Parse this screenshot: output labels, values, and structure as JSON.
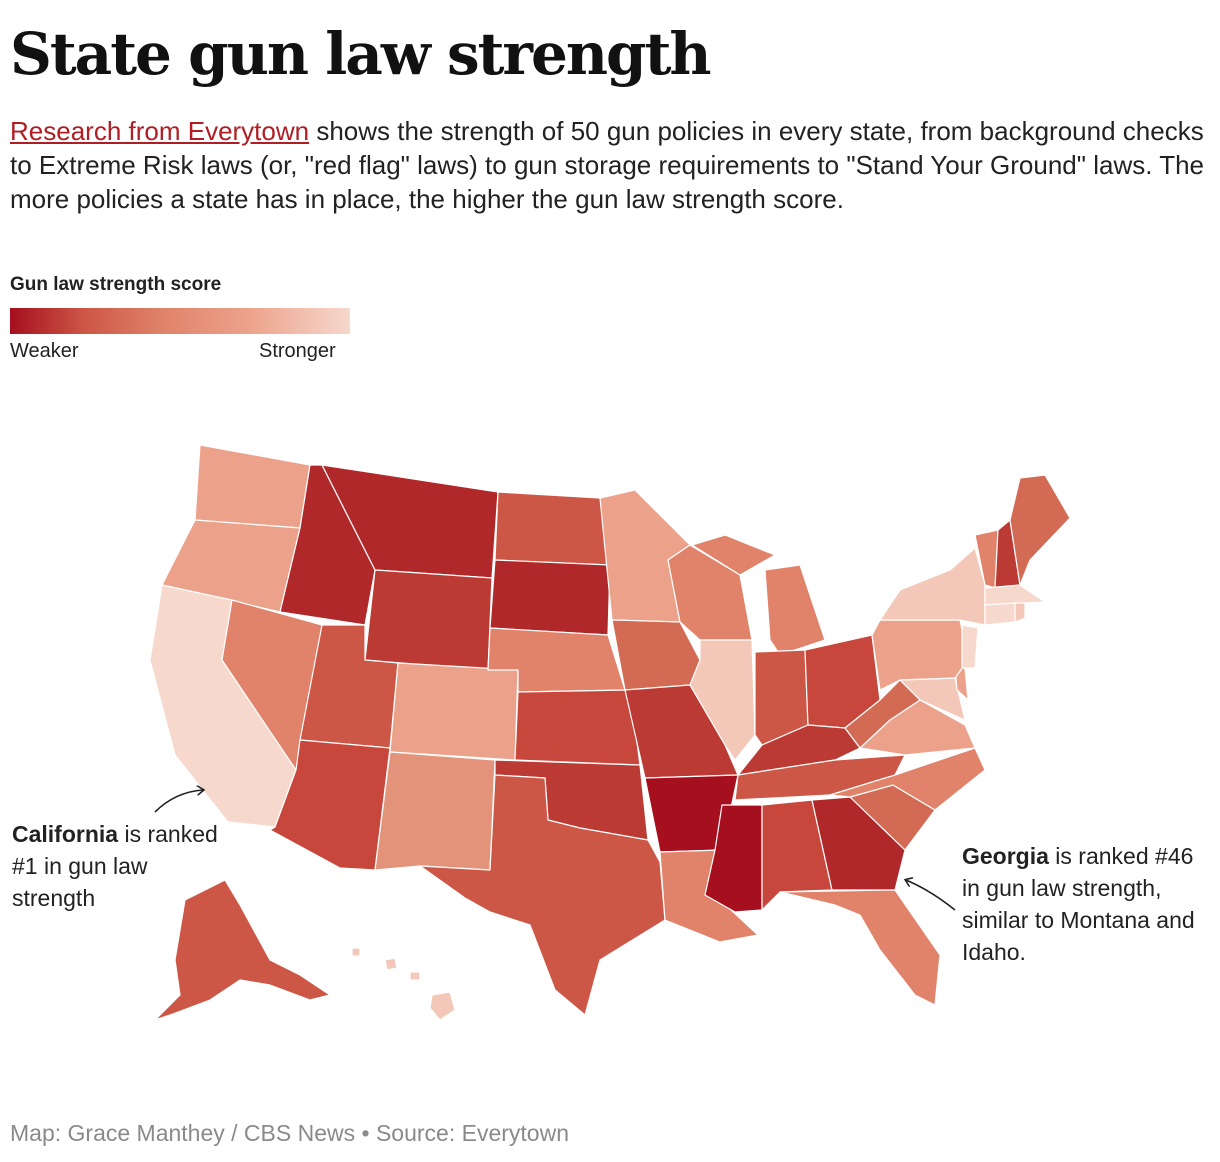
{
  "header": {
    "title": "State gun law strength",
    "link_text": "Research from Everytown",
    "description_rest": " shows the strength of 50 gun policies in every state, from background checks to Extreme Risk laws (or, \"red flag\" laws) to gun storage requirements to \"Stand Your Ground\" laws. The more policies a state has in place, the higher the gun law strength score."
  },
  "legend": {
    "title": "Gun law strength score",
    "low_label": "Weaker",
    "high_label": "Stronger",
    "colors": [
      "#a50f1e",
      "#cd5746",
      "#e0836a",
      "#eca28a",
      "#f6d8cd"
    ]
  },
  "annotations": {
    "california": {
      "bold": "California",
      "rest": " is ranked #1 in gun law strength"
    },
    "georgia": {
      "bold": "Georgia",
      "rest": " is ranked #46 in gun law strength, similar to Montana and Idaho."
    }
  },
  "footer": {
    "credit": "Map: Grace Manthey / CBS News • Source: Everytown"
  },
  "chart_data": {
    "type": "choropleth",
    "title": "State gun law strength",
    "legend_title": "Gun law strength score",
    "scale": "sequential: dark red = weaker, light pink = stronger",
    "ranks": {
      "California": 1,
      "Georgia": 46
    },
    "state_colors": {
      "WA": "#eca28a",
      "OR": "#eca28a",
      "CA": "#f6d8cd",
      "NV": "#e0836a",
      "ID": "#b02829",
      "MT": "#b02829",
      "WY": "#bc3a34",
      "UT": "#cd5746",
      "AZ": "#c8473c",
      "CO": "#eca28a",
      "NM": "#e29379",
      "ND": "#cd5746",
      "SD": "#b02829",
      "NE": "#e0836a",
      "KS": "#c8473c",
      "OK": "#bc3a34",
      "TX": "#cd5746",
      "MN": "#eca28a",
      "IA": "#d36a53",
      "MO": "#bc3a34",
      "AR": "#a50f1e",
      "LA": "#e0836a",
      "WI": "#e0836a",
      "IL": "#f3c8b8",
      "MI": "#e0836a",
      "IN": "#cd5746",
      "OH": "#c8473c",
      "KY": "#bc3a34",
      "TN": "#cd5746",
      "MS": "#a50f1e",
      "AL": "#c8473c",
      "GA": "#b02829",
      "FL": "#e0836a",
      "SC": "#d36a53",
      "NC": "#e0836a",
      "VA": "#eca28a",
      "WV": "#d36a53",
      "PA": "#eca28a",
      "NY": "#f3c8b8",
      "VT": "#e0836a",
      "NH": "#bc3a34",
      "ME": "#d36a53",
      "MA": "#f6d8cd",
      "CT": "#f6d8cd",
      "RI": "#f3c8b8",
      "NJ": "#f6d8cd",
      "DE": "#eca28a",
      "MD": "#f3c8b8",
      "AK": "#cd5746",
      "HI": "#f3c8b8"
    }
  }
}
